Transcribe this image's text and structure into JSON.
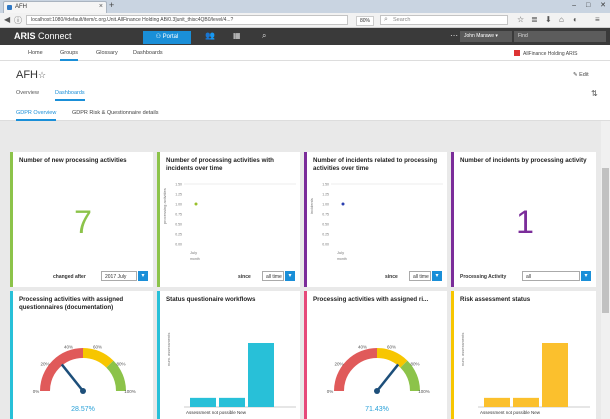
{
  "browser": {
    "tab_title": "AFH",
    "tab_close": "×",
    "new_tab": "+",
    "url": "localhost:1080/#default/item/c.org.Unit.AllFinance Holding AB/0.3]unit_thisc4QB0/level/4...?",
    "zoom": "80%",
    "search_placeholder": "Search",
    "min": "–",
    "max": "□",
    "close": "✕"
  },
  "header": {
    "logo_brand": "ARIS",
    "logo_product": "Connect",
    "portal": "Portal",
    "user": "John Marawe",
    "find": "Find"
  },
  "subnav": {
    "home": "Home",
    "groups": "Groups",
    "glossary": "Glossary",
    "dashboards": "Dashboards",
    "org": "AllFinance Holding ARIS"
  },
  "page": {
    "title": "AFH",
    "star": "☆",
    "edit": "Edit",
    "tabs": [
      "Overview",
      "Dashboards"
    ],
    "subtabs": [
      "GDPR Overview",
      "GDPR Risk & Questionnaire details"
    ]
  },
  "colors": {
    "green": "#8cc34a",
    "yellow": "#f7c600",
    "red": "#e05a5a",
    "cyan": "#28c0d8",
    "purple": "#7b2d9a",
    "pink": "#e64a7a",
    "blue": "#1a8fd8"
  },
  "cards": {
    "c1": {
      "title": "Number of new processing activities",
      "value": "7",
      "filter_label": "changed after",
      "filter_value": "2017 July"
    },
    "c2": {
      "title": "Number of processing activities with incidents over time",
      "filter_label": "since",
      "filter_value": "all time",
      "ylabel": "processing activities",
      "xtick": "July",
      "xsub": "month"
    },
    "c3": {
      "title": "Number of incidents related to processing activities over time",
      "filter_label": "since",
      "filter_value": "all time",
      "ylabel": "incidents",
      "xtick": "July",
      "xsub": "month"
    },
    "c4": {
      "title": "Number of incidents by processing activity",
      "value": "1",
      "filter_label": "Processing Activity",
      "filter_value": "all"
    },
    "c5": {
      "title": "Processing activities with assigned questionnaires (documentation)",
      "gauge_value": "28.57%"
    },
    "c6": {
      "title": "Status questionaire workflows",
      "ylabel": "num. assessments",
      "xlabel": "Assessment not possible New"
    },
    "c7": {
      "title": "Processing activities with assigned ri...",
      "gauge_value": "71.43%"
    },
    "c8": {
      "title": "Risk assessment status",
      "ylabel": "num. assessments",
      "xlabel": "Assessment not possible New"
    }
  },
  "chart_data": [
    {
      "type": "line",
      "series": [
        {
          "values": [
            1
          ]
        }
      ],
      "categories": [
        "July"
      ],
      "ylim": [
        0,
        1.5
      ],
      "yticks": [
        "1.50",
        "1.25",
        "1.00",
        "0.75",
        "0.50",
        "0.25",
        "0.00"
      ],
      "xlabel": "month",
      "ylabel": "processing activities"
    },
    {
      "type": "line",
      "series": [
        {
          "values": [
            1
          ]
        }
      ],
      "categories": [
        "July"
      ],
      "ylim": [
        0,
        1.5
      ],
      "yticks": [
        "1.50",
        "1.25",
        "1.00",
        "0.75",
        "0.50",
        "0.25",
        "0.00"
      ],
      "xlabel": "month",
      "ylabel": "incidents"
    },
    {
      "type": "gauge",
      "value": 28.57,
      "ticks": [
        "0%",
        "20%",
        "40%",
        "60%",
        "80%",
        "100%"
      ]
    },
    {
      "type": "bar",
      "values": [
        1,
        1,
        7
      ],
      "ylabel": "num. assessments"
    },
    {
      "type": "gauge",
      "value": 71.43,
      "ticks": [
        "0%",
        "20%",
        "40%",
        "60%",
        "80%",
        "100%"
      ]
    },
    {
      "type": "bar",
      "values": [
        1,
        1,
        7
      ],
      "ylabel": "num. assessments"
    }
  ]
}
